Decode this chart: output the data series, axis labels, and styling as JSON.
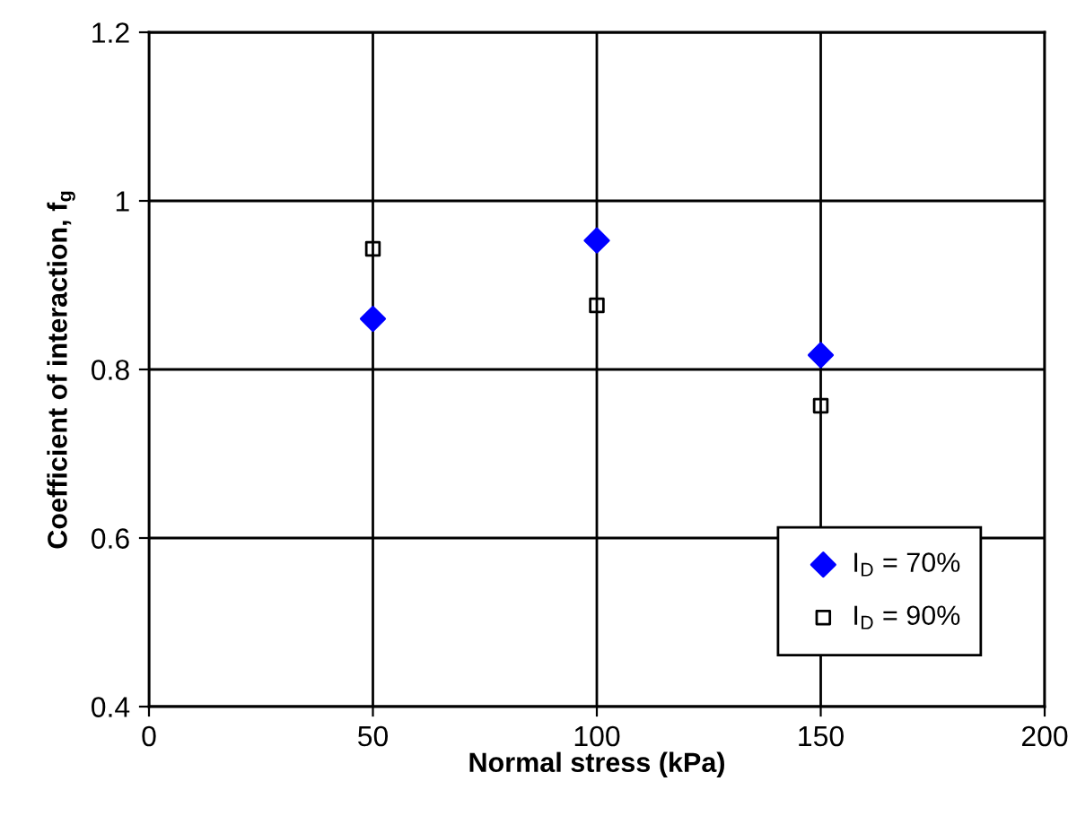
{
  "chart_data": {
    "type": "scatter",
    "xlabel": "Normal stress (kPa)",
    "ylabel": "Coefficient of interaction, f$_{g}$",
    "x": [
      50,
      100,
      150
    ],
    "series": [
      {
        "name": "I$_{D}$ = 70%",
        "color": "#0000ff",
        "marker": "diamond",
        "values": [
          0.86,
          0.953,
          0.817
        ]
      },
      {
        "name": "I$_{D}$ = 90%",
        "color": "#000000",
        "marker": "square",
        "values": [
          0.943,
          0.876,
          0.757
        ]
      }
    ],
    "xlim": [
      0,
      200
    ],
    "xticks": [
      0,
      50,
      100,
      150,
      200
    ],
    "ylim": [
      0.4,
      1.2
    ],
    "yticks": [
      0.4,
      0.6,
      0.8,
      1,
      1.2
    ],
    "grid": true,
    "legend": "bottom right"
  }
}
